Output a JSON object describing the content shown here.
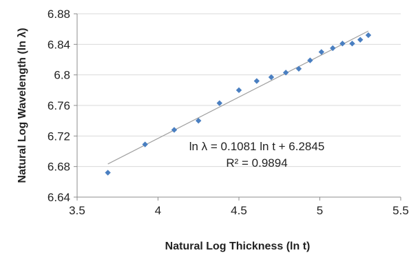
{
  "chart_data": {
    "type": "scatter",
    "title": "",
    "xlabel": "Natural Log Thickness  (ln t)",
    "ylabel": "Natural Log Wavelength (ln λ)",
    "xlim": [
      3.5,
      5.5
    ],
    "ylim": [
      6.64,
      6.88
    ],
    "x_ticks": [
      3.5,
      4,
      4.5,
      5,
      5.5
    ],
    "x_tick_labels": [
      "3.5",
      "4",
      "4.5",
      "5",
      "5.5"
    ],
    "y_ticks": [
      6.64,
      6.68,
      6.72,
      6.76,
      6.8,
      6.84,
      6.88
    ],
    "y_tick_labels": [
      "6.64",
      "6.68",
      "6.72",
      "6.76",
      "6.8",
      "6.84",
      "6.88"
    ],
    "grid": "horizontal",
    "marker_color": "#4a7fc1",
    "trendline_color": "#a0a0a0",
    "series": [
      {
        "points": [
          [
            3.69,
            6.672
          ],
          [
            3.92,
            6.709
          ],
          [
            4.1,
            6.728
          ],
          [
            4.25,
            6.74
          ],
          [
            4.38,
            6.763
          ],
          [
            4.5,
            6.78
          ],
          [
            4.61,
            6.792
          ],
          [
            4.7,
            6.797
          ],
          [
            4.79,
            6.803
          ],
          [
            4.87,
            6.808
          ],
          [
            4.94,
            6.819
          ],
          [
            5.01,
            6.83
          ],
          [
            5.08,
            6.835
          ],
          [
            5.14,
            6.841
          ],
          [
            5.2,
            6.841
          ],
          [
            5.25,
            6.846
          ],
          [
            5.3,
            6.852
          ]
        ]
      }
    ],
    "trendline": {
      "slope": 0.1081,
      "intercept": 6.2845,
      "x_range": [
        3.69,
        5.3
      ]
    },
    "annotations": {
      "equation": "ln λ = 0.1081 ln t + 6.2845",
      "r_squared": "R² = 0.9894"
    }
  }
}
